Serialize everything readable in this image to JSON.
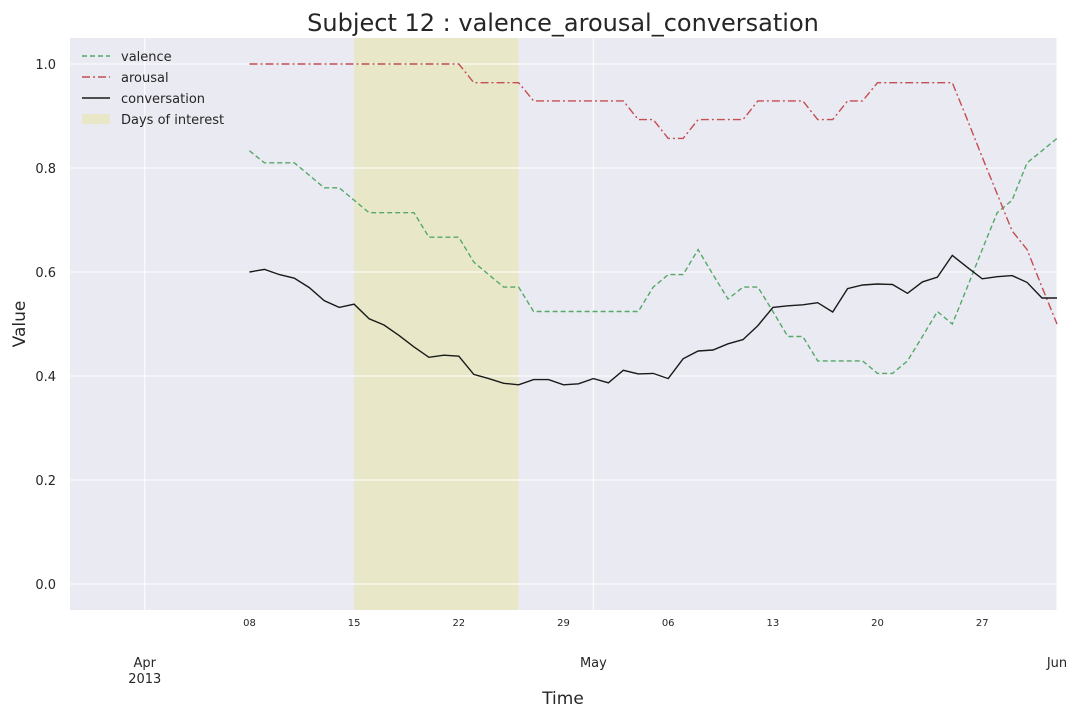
{
  "chart_data": {
    "type": "line",
    "title": "Subject 12 : valence_arousal_conversation",
    "xlabel": "Time",
    "ylabel": "Value",
    "xlim": [
      "2013-03-27",
      "2013-06-01"
    ],
    "ylim": [
      -0.05,
      1.05
    ],
    "yticks": [
      "0.0",
      "0.2",
      "0.4",
      "0.6",
      "0.8",
      "1.0"
    ],
    "x_minor_ticks": [
      {
        "date": "2013-04-08",
        "label": "08"
      },
      {
        "date": "2013-04-15",
        "label": "15"
      },
      {
        "date": "2013-04-22",
        "label": "22"
      },
      {
        "date": "2013-04-29",
        "label": "29"
      },
      {
        "date": "2013-05-06",
        "label": "06"
      },
      {
        "date": "2013-05-13",
        "label": "13"
      },
      {
        "date": "2013-05-20",
        "label": "20"
      },
      {
        "date": "2013-05-27",
        "label": "27"
      }
    ],
    "x_major_ticks": [
      {
        "date": "2013-04-01",
        "label": "Apr",
        "sublabel": "2013"
      },
      {
        "date": "2013-05-01",
        "label": "May",
        "sublabel": ""
      },
      {
        "date": "2013-06-01",
        "label": "Jun",
        "sublabel": ""
      }
    ],
    "grid": true,
    "legend_position": "top-left",
    "highlight": {
      "name": "Days of interest",
      "start": "2013-04-15",
      "end": "2013-04-26",
      "color": "#e8e8c8"
    },
    "series": [
      {
        "name": "valence",
        "color": "#55a868",
        "dash": "5,3",
        "x": [
          "2013-04-08",
          "2013-04-09",
          "2013-04-10",
          "2013-04-11",
          "2013-04-12",
          "2013-04-13",
          "2013-04-14",
          "2013-04-15",
          "2013-04-16",
          "2013-04-17",
          "2013-04-18",
          "2013-04-19",
          "2013-04-20",
          "2013-04-21",
          "2013-04-22",
          "2013-04-23",
          "2013-04-24",
          "2013-04-25",
          "2013-04-26",
          "2013-04-27",
          "2013-04-28",
          "2013-04-29",
          "2013-04-30",
          "2013-05-01",
          "2013-05-02",
          "2013-05-03",
          "2013-05-04",
          "2013-05-05",
          "2013-05-06",
          "2013-05-07",
          "2013-05-08",
          "2013-05-09",
          "2013-05-10",
          "2013-05-11",
          "2013-05-12",
          "2013-05-13",
          "2013-05-14",
          "2013-05-15",
          "2013-05-16",
          "2013-05-17",
          "2013-05-18",
          "2013-05-19",
          "2013-05-20",
          "2013-05-21",
          "2013-05-22",
          "2013-05-23",
          "2013-05-24",
          "2013-05-25",
          "2013-05-26",
          "2013-05-27",
          "2013-05-28",
          "2013-05-29",
          "2013-05-30",
          "2013-05-31",
          "2013-06-01"
        ],
        "values": [
          0.833,
          0.81,
          0.81,
          0.81,
          0.786,
          0.762,
          0.762,
          0.738,
          0.714,
          0.714,
          0.714,
          0.714,
          0.667,
          0.667,
          0.667,
          0.619,
          0.595,
          0.571,
          0.571,
          0.524,
          0.524,
          0.524,
          0.524,
          0.524,
          0.524,
          0.524,
          0.524,
          0.571,
          0.595,
          0.595,
          0.643,
          0.595,
          0.548,
          0.571,
          0.571,
          0.524,
          0.476,
          0.476,
          0.429,
          0.429,
          0.429,
          0.429,
          0.405,
          0.405,
          0.429,
          0.476,
          0.524,
          0.5,
          0.571,
          0.643,
          0.714,
          0.738,
          0.81,
          0.833,
          0.857
        ]
      },
      {
        "name": "arousal",
        "color": "#c44e52",
        "dash": "8,3,2,3",
        "x": [
          "2013-04-08",
          "2013-04-09",
          "2013-04-10",
          "2013-04-11",
          "2013-04-12",
          "2013-04-13",
          "2013-04-14",
          "2013-04-15",
          "2013-04-16",
          "2013-04-17",
          "2013-04-18",
          "2013-04-19",
          "2013-04-20",
          "2013-04-21",
          "2013-04-22",
          "2013-04-23",
          "2013-04-24",
          "2013-04-25",
          "2013-04-26",
          "2013-04-27",
          "2013-04-28",
          "2013-04-29",
          "2013-04-30",
          "2013-05-01",
          "2013-05-02",
          "2013-05-03",
          "2013-05-04",
          "2013-05-05",
          "2013-05-06",
          "2013-05-07",
          "2013-05-08",
          "2013-05-09",
          "2013-05-10",
          "2013-05-11",
          "2013-05-12",
          "2013-05-13",
          "2013-05-14",
          "2013-05-15",
          "2013-05-16",
          "2013-05-17",
          "2013-05-18",
          "2013-05-19",
          "2013-05-20",
          "2013-05-21",
          "2013-05-22",
          "2013-05-23",
          "2013-05-24",
          "2013-05-25",
          "2013-05-26",
          "2013-05-27",
          "2013-05-28",
          "2013-05-29",
          "2013-05-30",
          "2013-05-31",
          "2013-06-01"
        ],
        "values": [
          1.0,
          1.0,
          1.0,
          1.0,
          1.0,
          1.0,
          1.0,
          1.0,
          1.0,
          1.0,
          1.0,
          1.0,
          1.0,
          1.0,
          1.0,
          0.964,
          0.964,
          0.964,
          0.964,
          0.929,
          0.929,
          0.929,
          0.929,
          0.929,
          0.929,
          0.929,
          0.893,
          0.893,
          0.857,
          0.857,
          0.893,
          0.893,
          0.893,
          0.893,
          0.929,
          0.929,
          0.929,
          0.929,
          0.893,
          0.893,
          0.929,
          0.929,
          0.964,
          0.964,
          0.964,
          0.964,
          0.964,
          0.964,
          0.893,
          0.821,
          0.75,
          0.679,
          0.643,
          0.571,
          0.5
        ]
      },
      {
        "name": "conversation",
        "color": "#1a1a1a",
        "dash": "",
        "x": [
          "2013-04-08",
          "2013-04-09",
          "2013-04-10",
          "2013-04-11",
          "2013-04-12",
          "2013-04-13",
          "2013-04-14",
          "2013-04-15",
          "2013-04-16",
          "2013-04-17",
          "2013-04-18",
          "2013-04-19",
          "2013-04-20",
          "2013-04-21",
          "2013-04-22",
          "2013-04-23",
          "2013-04-24",
          "2013-04-25",
          "2013-04-26",
          "2013-04-27",
          "2013-04-28",
          "2013-04-29",
          "2013-04-30",
          "2013-05-01",
          "2013-05-02",
          "2013-05-03",
          "2013-05-04",
          "2013-05-05",
          "2013-05-06",
          "2013-05-07",
          "2013-05-08",
          "2013-05-09",
          "2013-05-10",
          "2013-05-11",
          "2013-05-12",
          "2013-05-13",
          "2013-05-14",
          "2013-05-15",
          "2013-05-16",
          "2013-05-17",
          "2013-05-18",
          "2013-05-19",
          "2013-05-20",
          "2013-05-21",
          "2013-05-22",
          "2013-05-23",
          "2013-05-24",
          "2013-05-25",
          "2013-05-26",
          "2013-05-27",
          "2013-05-28",
          "2013-05-29",
          "2013-05-30",
          "2013-05-31",
          "2013-06-01"
        ],
        "values": [
          0.6,
          0.605,
          0.595,
          0.588,
          0.57,
          0.545,
          0.532,
          0.538,
          0.51,
          0.498,
          0.478,
          0.456,
          0.436,
          0.44,
          0.438,
          0.403,
          0.395,
          0.386,
          0.383,
          0.393,
          0.393,
          0.383,
          0.385,
          0.395,
          0.387,
          0.411,
          0.404,
          0.405,
          0.395,
          0.433,
          0.448,
          0.45,
          0.462,
          0.47,
          0.497,
          0.532,
          0.535,
          0.537,
          0.541,
          0.523,
          0.568,
          0.575,
          0.577,
          0.576,
          0.559,
          0.581,
          0.59,
          0.632,
          0.609,
          0.587,
          0.591,
          0.593,
          0.58,
          0.55,
          0.55
        ]
      }
    ]
  }
}
